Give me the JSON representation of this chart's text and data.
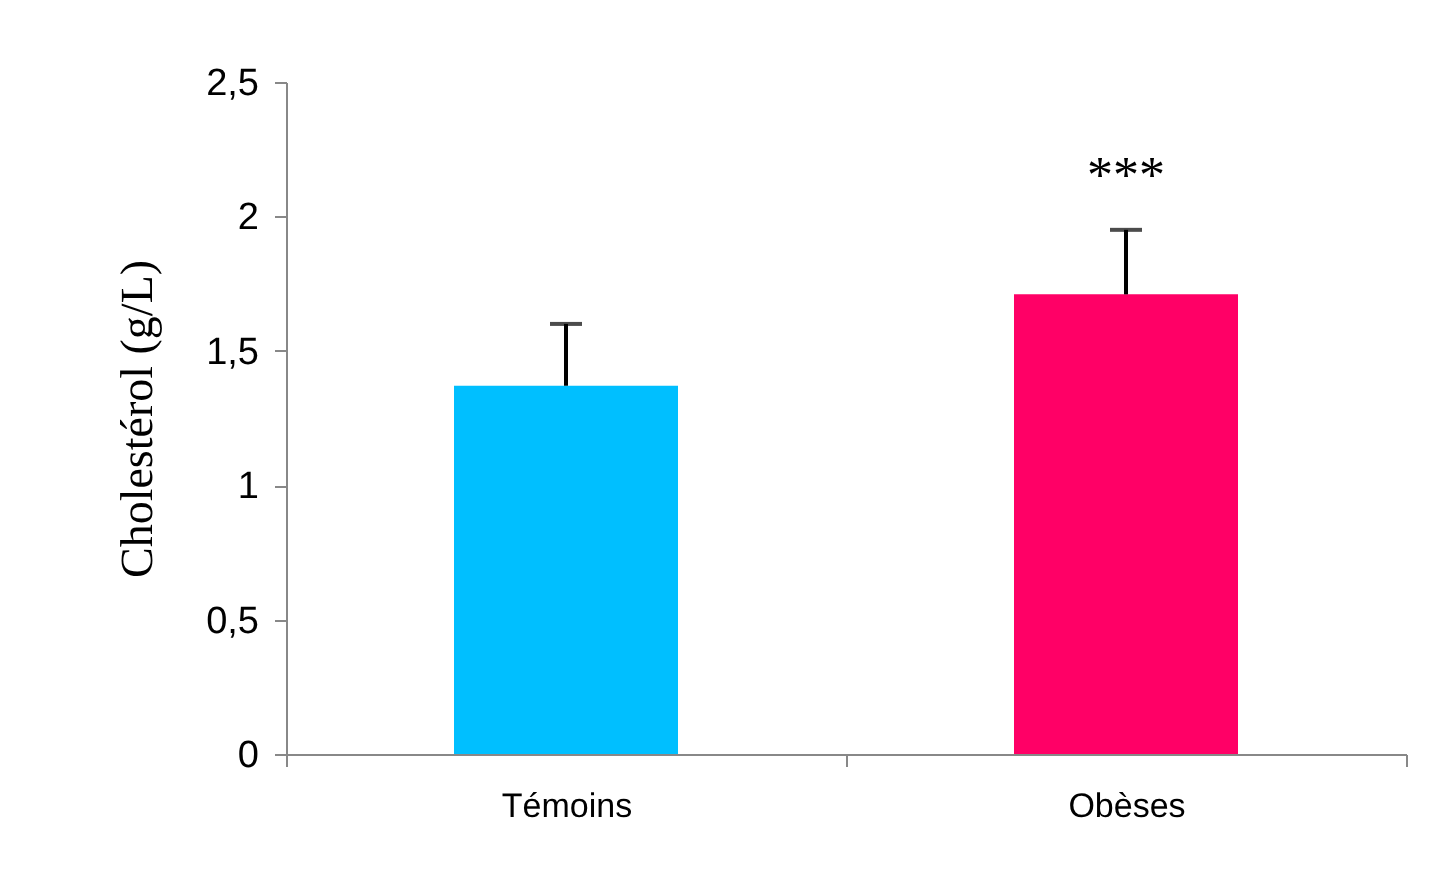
{
  "chart_data": {
    "type": "bar",
    "ylabel": "Cholestérol (g/L)",
    "categories": [
      "Témoins",
      "Obèses"
    ],
    "values": [
      1.37,
      1.71
    ],
    "colors": [
      "#00bfff",
      "#ff0066"
    ],
    "errors": [
      [
        1.37,
        1.6
      ],
      [
        1.71,
        1.95
      ]
    ],
    "ylim": [
      0,
      2.5
    ],
    "yticks": [
      0,
      {
        "value": 0.5,
        "label": "0,5"
      },
      1,
      {
        "value": 1.5,
        "label": "1,5"
      },
      2,
      {
        "value": 2.5,
        "label": "2,5"
      }
    ],
    "annotations": [
      "***"
    ],
    "grid": false
  }
}
